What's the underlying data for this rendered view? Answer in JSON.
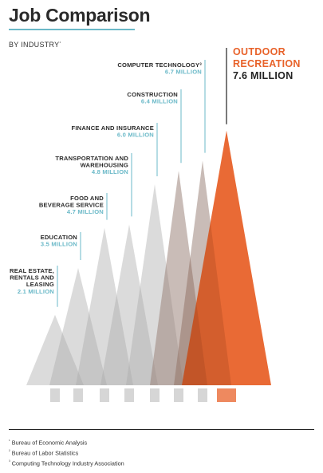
{
  "title": "Job Comparison",
  "subtitle": "BY INDUSTRY",
  "subtitle_note": "¹",
  "chart_data": {
    "type": "area",
    "unit": "MILLION",
    "categories": [
      {
        "name_lines": [
          "REAL ESTATE,",
          "RENTALS AND",
          "LEASING"
        ],
        "value": 2.1,
        "value_label": "2.1 MILLION"
      },
      {
        "name_lines": [
          "EDUCATION"
        ],
        "value": 3.5,
        "value_label": "3.5 MILLION"
      },
      {
        "name_lines": [
          "FOOD AND",
          "BEVERAGE SERVICE"
        ],
        "value": 4.7,
        "value_label": "4.7 MILLION"
      },
      {
        "name_lines": [
          "TRANSPORTATION AND",
          "WAREHOUSING"
        ],
        "value": 4.8,
        "value_label": "4.8 MILLION"
      },
      {
        "name_lines": [
          "FINANCE AND INSURANCE"
        ],
        "value": 6.0,
        "value_label": "6.0 MILLION"
      },
      {
        "name_lines": [
          "CONSTRUCTION"
        ],
        "value": 6.4,
        "value_label": "6.4 MILLION"
      },
      {
        "name_lines": [
          "COMPUTER TECHNOLOGY³"
        ],
        "value": 6.7,
        "value_label": "6.7 MILLION"
      }
    ],
    "highlight": {
      "name_lines": [
        "OUTDOOR",
        "RECREATION"
      ],
      "value": 7.6,
      "value_label": "7.6 MILLION"
    },
    "colors": {
      "highlight": "#e8622a",
      "value_text": "#6bb9c8",
      "tree": "#a9a9a9",
      "trunk": "#d6d6d6"
    }
  },
  "footnotes": [
    {
      "mark": "¹",
      "text": "Bureau of Economic Analysis"
    },
    {
      "mark": "²",
      "text": "Bureau of Labor Statistics"
    },
    {
      "mark": "³",
      "text": "Computing Technology Industry Association"
    }
  ]
}
